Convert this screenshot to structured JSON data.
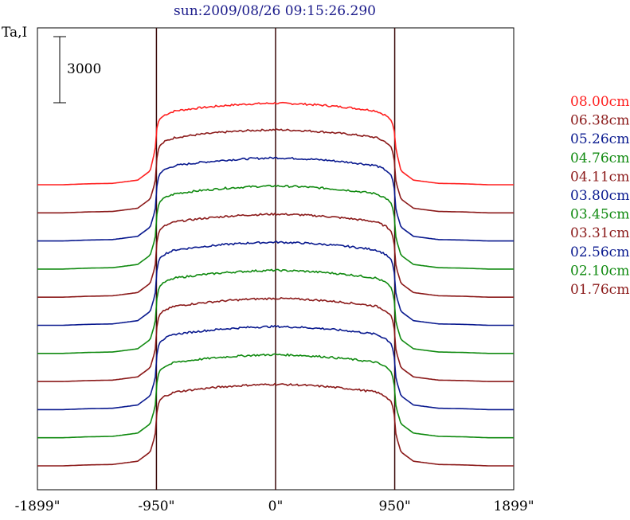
{
  "header": {
    "title": "sun:2009/08/26 09:15:26.290"
  },
  "chart_data": {
    "type": "line",
    "title": "sun:2009/08/26 09:15:26.290",
    "ylabel": "Ta,I",
    "xlabel": "",
    "scale_bar_label": "3000",
    "xlim": [
      -1899,
      1899
    ],
    "x_ticks": [
      -1899,
      -950,
      0,
      950,
      1899
    ],
    "x_tick_labels": [
      "-1899\"",
      "-950\"",
      "0\"",
      "950\"",
      "1899\""
    ],
    "vertical_markers": [
      -950,
      0,
      950
    ],
    "x": [
      -1899,
      -1700,
      -1500,
      -1300,
      -1100,
      -1000,
      -960,
      -950,
      -940,
      -920,
      -880,
      -800,
      -600,
      -400,
      -200,
      0,
      200,
      400,
      600,
      800,
      880,
      920,
      940,
      950,
      960,
      1000,
      1100,
      1300,
      1500,
      1700,
      1899
    ],
    "grid": false,
    "legend_position": "right",
    "series": [
      {
        "name": "08.00cm",
        "color": "#ff2020",
        "values": [
          0,
          0,
          60,
          90,
          300,
          900,
          2300,
          3500,
          4000,
          4300,
          4550,
          4800,
          5000,
          5150,
          5250,
          5300,
          5250,
          5150,
          5000,
          4800,
          4500,
          4200,
          3800,
          3300,
          2300,
          900,
          300,
          90,
          60,
          0,
          0
        ]
      },
      {
        "name": "06.38cm",
        "color": "#8b1a1a",
        "values": [
          0,
          0,
          60,
          90,
          300,
          900,
          2000,
          3300,
          4000,
          4400,
          4650,
          4900,
          5100,
          5250,
          5350,
          5400,
          5350,
          5250,
          5100,
          4900,
          4600,
          4300,
          3800,
          3200,
          2000,
          900,
          300,
          90,
          60,
          0,
          0
        ]
      },
      {
        "name": "05.26cm",
        "color": "#0a1a8f",
        "values": [
          0,
          0,
          60,
          90,
          300,
          900,
          2000,
          3300,
          4000,
          4400,
          4650,
          4900,
          5100,
          5250,
          5350,
          5400,
          5350,
          5250,
          5100,
          4900,
          4600,
          4300,
          3800,
          3200,
          2000,
          900,
          300,
          90,
          60,
          0,
          0
        ]
      },
      {
        "name": "04.76cm",
        "color": "#108a10",
        "values": [
          0,
          0,
          60,
          90,
          300,
          900,
          2000,
          3300,
          4000,
          4400,
          4650,
          4900,
          5100,
          5250,
          5350,
          5400,
          5350,
          5250,
          5100,
          4900,
          4600,
          4300,
          3800,
          3200,
          2000,
          900,
          300,
          90,
          60,
          0,
          0
        ]
      },
      {
        "name": "04.11cm",
        "color": "#8b1a1a",
        "values": [
          0,
          0,
          60,
          90,
          300,
          900,
          2000,
          3300,
          4000,
          4400,
          4650,
          4900,
          5100,
          5250,
          5350,
          5400,
          5350,
          5250,
          5100,
          4900,
          4600,
          4300,
          3800,
          3200,
          2000,
          900,
          300,
          90,
          60,
          0,
          0
        ]
      },
      {
        "name": "03.80cm",
        "color": "#0a1a8f",
        "values": [
          0,
          0,
          60,
          90,
          300,
          900,
          2000,
          3300,
          4000,
          4400,
          4650,
          4900,
          5100,
          5250,
          5350,
          5400,
          5350,
          5250,
          5100,
          4900,
          4600,
          4300,
          3800,
          3200,
          2000,
          900,
          300,
          90,
          60,
          0,
          0
        ]
      },
      {
        "name": "03.45cm",
        "color": "#108a10",
        "values": [
          0,
          0,
          60,
          90,
          300,
          900,
          2000,
          3300,
          4000,
          4400,
          4650,
          4900,
          5100,
          5250,
          5350,
          5400,
          5350,
          5250,
          5100,
          4900,
          4600,
          4300,
          3800,
          3200,
          2000,
          900,
          300,
          90,
          60,
          0,
          0
        ]
      },
      {
        "name": "03.31cm",
        "color": "#8b1a1a",
        "values": [
          0,
          0,
          60,
          90,
          300,
          900,
          2000,
          3300,
          4000,
          4400,
          4650,
          4900,
          5100,
          5250,
          5350,
          5400,
          5350,
          5250,
          5100,
          4900,
          4600,
          4300,
          3800,
          3200,
          2000,
          900,
          300,
          90,
          60,
          0,
          0
        ]
      },
      {
        "name": "02.56cm",
        "color": "#0a1a8f",
        "values": [
          0,
          0,
          60,
          90,
          300,
          900,
          2000,
          3300,
          4000,
          4400,
          4650,
          4900,
          5100,
          5250,
          5350,
          5400,
          5350,
          5250,
          5100,
          4900,
          4600,
          4300,
          3800,
          3200,
          2000,
          900,
          300,
          90,
          60,
          0,
          0
        ]
      },
      {
        "name": "02.10cm",
        "color": "#108a10",
        "values": [
          0,
          0,
          60,
          90,
          300,
          900,
          2000,
          3300,
          4000,
          4400,
          4650,
          4900,
          5100,
          5250,
          5350,
          5400,
          5350,
          5250,
          5100,
          4900,
          4600,
          4300,
          3800,
          3200,
          2000,
          900,
          300,
          90,
          60,
          0,
          0
        ]
      },
      {
        "name": "01.76cm",
        "color": "#8b1a1a",
        "values": [
          0,
          0,
          60,
          90,
          300,
          900,
          2000,
          3200,
          3900,
          4300,
          4550,
          4800,
          5000,
          5150,
          5250,
          5300,
          5250,
          5150,
          5000,
          4800,
          4500,
          4200,
          3700,
          3100,
          2000,
          900,
          300,
          90,
          60,
          0,
          0
        ]
      }
    ]
  }
}
